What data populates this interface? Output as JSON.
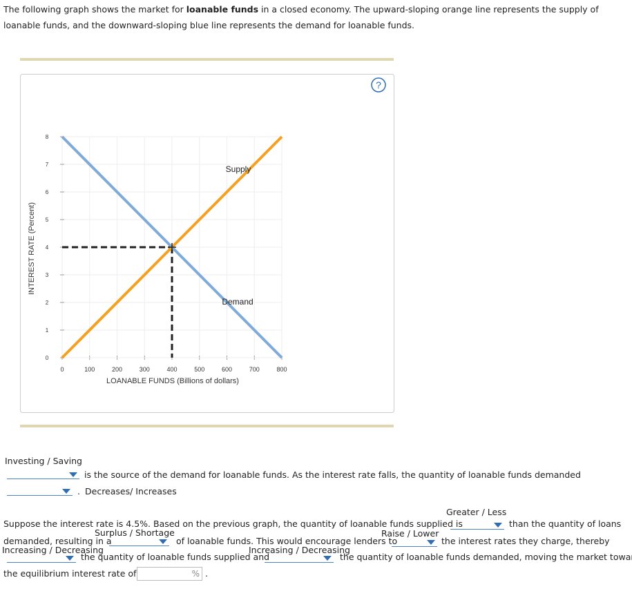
{
  "intro": {
    "text1": "The following graph shows the market for ",
    "bold": "loanable funds",
    "text2": " in a closed economy. The upward-sloping orange line represents the supply of loanable funds, and the downward-sloping blue line represents the demand for loanable funds."
  },
  "help": "?",
  "chart_data": {
    "type": "line",
    "x_label": "LOANABLE FUNDS (Billions of dollars)",
    "y_label": "INTEREST RATE (Percent)",
    "x": [
      0,
      800
    ],
    "series": [
      {
        "name": "Supply",
        "color": "#f5a020",
        "values": [
          0,
          8
        ]
      },
      {
        "name": "Demand",
        "color": "#80aad8",
        "values": [
          8,
          0
        ]
      }
    ],
    "equilibrium": {
      "x": 400,
      "y": 4
    },
    "xlim": [
      0,
      800
    ],
    "ylim": [
      0,
      8
    ],
    "xticks": [
      0,
      100,
      200,
      300,
      400,
      500,
      600,
      700,
      800
    ],
    "yticks": [
      0,
      1,
      2,
      3,
      4,
      5,
      6,
      7,
      8
    ],
    "grid": true
  },
  "question1": {
    "options1": "Investing / Saving",
    "text1": "is the source of the demand for loanable funds. As the interest rate falls, the quantity of loanable funds demanded",
    "text2": ".",
    "options2": "Decreases/ Increases"
  },
  "question2": {
    "options1": "Greater / Less",
    "text1": "Suppose the interest rate is 4.5%. Based on the previous graph, the quantity of loanable funds supplied is",
    "text2": "than the quantity of loans",
    "options2": "Surplus / Shortage",
    "text3": "demanded, resulting in a",
    "text4": "of loanable funds. This would encourage lenders to",
    "options3": "Raise / Lower",
    "text5": "the interest rates they charge, thereby",
    "options4": "Increasing / Decreasing",
    "text6": "the quantity of loanable funds supplied and",
    "options5": "Increasing / Decreasing",
    "text7": "the quantity of loanable funds demanded, moving the market toward",
    "text8": "the equilibrium interest rate of",
    "unit": "%",
    "text9": "."
  }
}
